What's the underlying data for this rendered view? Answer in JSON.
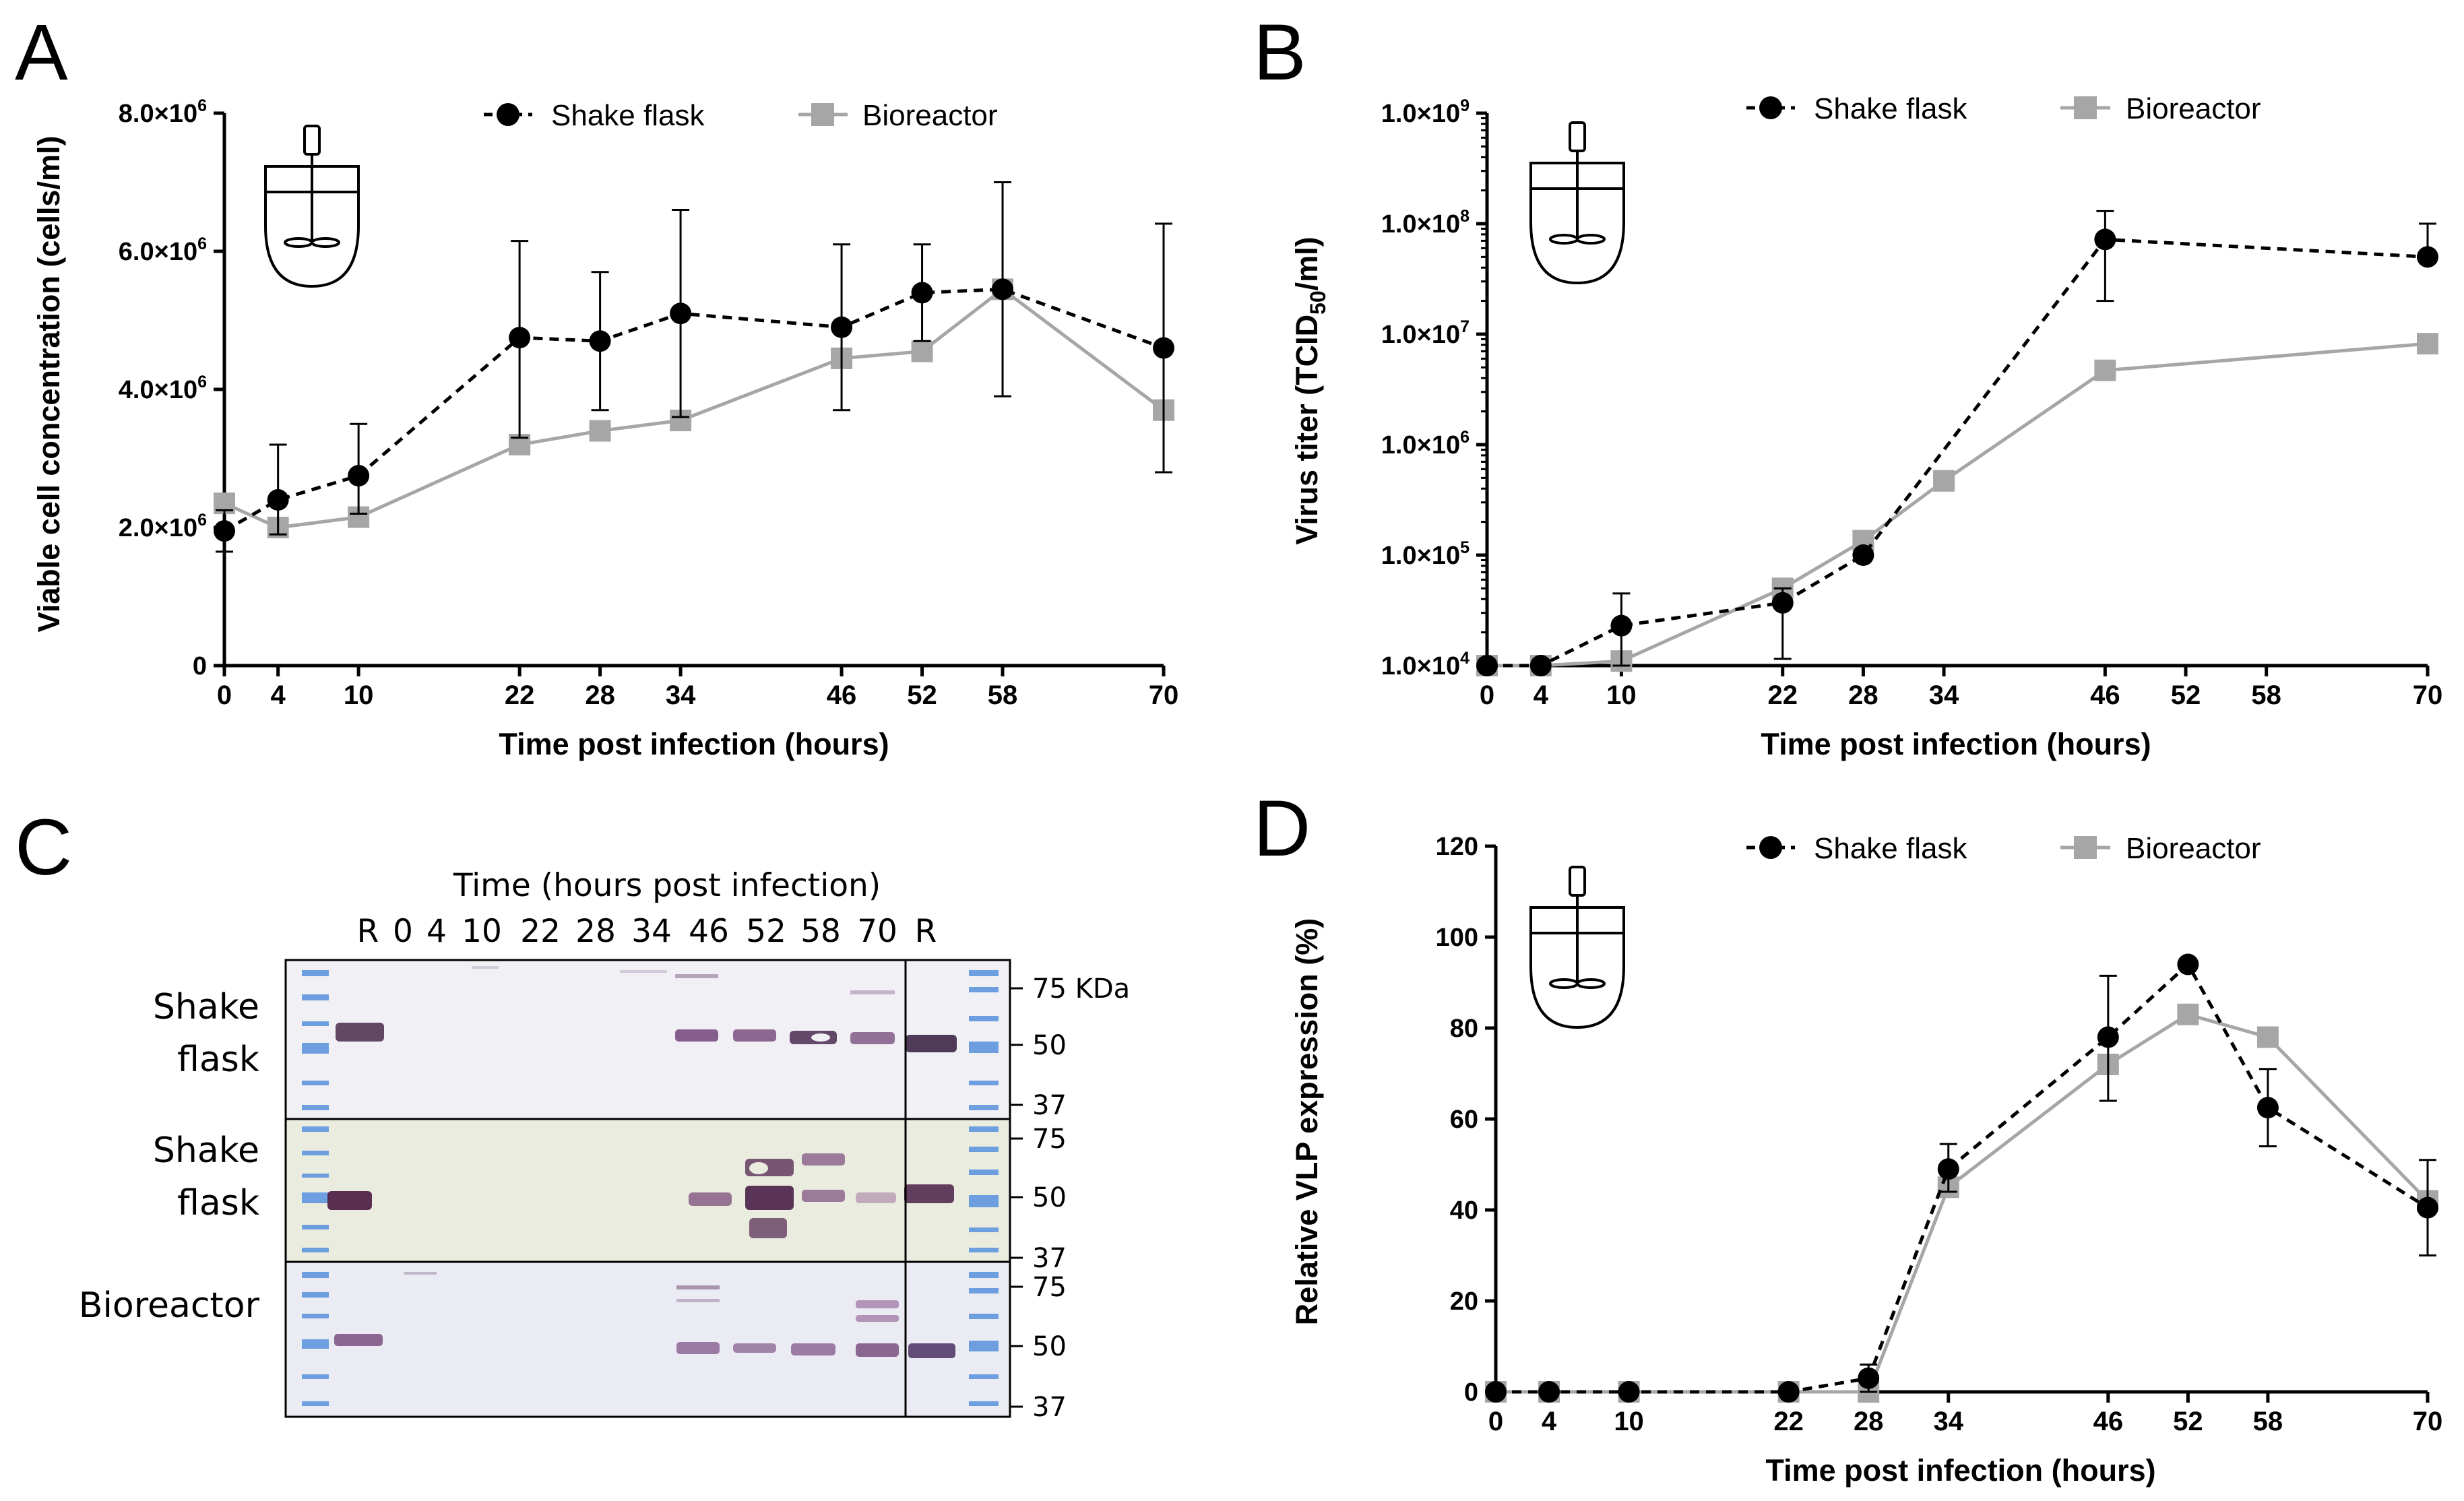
{
  "colors": {
    "shake": "#000000",
    "bio": "#a6a6a6",
    "axis": "#000000"
  },
  "legend": {
    "shake": "Shake flask",
    "bio": "Bioreactor"
  },
  "chart_data": [
    {
      "panel": "A",
      "type": "line",
      "ylabel": "Viable cell concentration (cells/ml)",
      "xlabel": "Time post infection (hours)",
      "xticks": [
        0,
        4,
        10,
        22,
        28,
        34,
        46,
        52,
        58,
        70
      ],
      "xlim": [
        0,
        70
      ],
      "ylim": [
        0,
        8000000
      ],
      "yscale": "linear",
      "yticks": [
        0,
        2000000,
        4000000,
        6000000,
        8000000
      ],
      "ytick_labels": [
        {
          "base": "0"
        },
        {
          "base": "2.0×10",
          "exp": "6"
        },
        {
          "base": "4.0×10",
          "exp": "6"
        },
        {
          "base": "6.0×10",
          "exp": "6"
        },
        {
          "base": "8.0×10",
          "exp": "6"
        }
      ],
      "series": [
        {
          "name": "Shake flask",
          "key": "shake",
          "x": [
            0,
            4,
            10,
            22,
            28,
            34,
            46,
            52,
            58,
            70
          ],
          "y": [
            1950000,
            2400000,
            2750000,
            4750000,
            4700000,
            5100000,
            4900000,
            5400000,
            5450000,
            4600000
          ],
          "err_lo": [
            1650000,
            1900000,
            2200000,
            3300000,
            3700000,
            3600000,
            3700000,
            4700000,
            3900000,
            2800000
          ],
          "err_hi": [
            2250000,
            3200000,
            3500000,
            6150000,
            5700000,
            6600000,
            6100000,
            6100000,
            7000000,
            6400000
          ]
        },
        {
          "name": "Bioreactor",
          "key": "bio",
          "x": [
            0,
            4,
            10,
            22,
            28,
            34,
            46,
            52,
            58,
            70
          ],
          "y": [
            2350000,
            2000000,
            2150000,
            3200000,
            3400000,
            3550000,
            4450000,
            4550000,
            5450000,
            3700000
          ]
        }
      ]
    },
    {
      "panel": "B",
      "type": "line",
      "ylabel": "Virus titer (TCID50/ml)",
      "xlabel": "Time post infection (hours)",
      "xticks": [
        0,
        4,
        10,
        22,
        28,
        34,
        46,
        52,
        58,
        70
      ],
      "xlim": [
        0,
        70
      ],
      "ylim": [
        10000,
        1000000000
      ],
      "yscale": "log",
      "yticks": [
        10000,
        100000,
        1000000,
        10000000,
        100000000,
        1000000000
      ],
      "ytick_labels": [
        {
          "base": "1.0×10",
          "exp": "4"
        },
        {
          "base": "1.0×10",
          "exp": "5"
        },
        {
          "base": "1.0×10",
          "exp": "6"
        },
        {
          "base": "1.0×10",
          "exp": "7"
        },
        {
          "base": "1.0×10",
          "exp": "8"
        },
        {
          "base": "1.0×10",
          "exp": "9"
        }
      ],
      "series": [
        {
          "name": "Shake flask",
          "key": "shake",
          "x": [
            0,
            4,
            10,
            22,
            28,
            46,
            70
          ],
          "y": [
            10000,
            10000,
            23000,
            37000,
            100000,
            72000000,
            50000000
          ],
          "err_lo": [
            10000,
            10000,
            10000,
            11500,
            100000,
            20000000,
            50000000
          ],
          "err_hi": [
            10000,
            10000,
            45000,
            50000,
            100000,
            130000000,
            100000000
          ]
        },
        {
          "name": "Bioreactor",
          "key": "bio",
          "x": [
            0,
            4,
            10,
            22,
            28,
            34,
            46,
            70
          ],
          "y": [
            10000,
            10000,
            11000,
            50000,
            135000,
            470000,
            4700000,
            8200000
          ]
        }
      ]
    },
    {
      "panel": "D",
      "type": "line",
      "ylabel": "Relative VLP expression (%)",
      "xlabel": "Time post infection (hours)",
      "xticks": [
        0,
        4,
        10,
        22,
        28,
        34,
        46,
        52,
        58,
        70
      ],
      "xlim": [
        0,
        70
      ],
      "ylim": [
        0,
        120
      ],
      "yscale": "linear",
      "yticks": [
        0,
        20,
        40,
        60,
        80,
        100,
        120
      ],
      "ytick_labels": [
        {
          "base": "0"
        },
        {
          "base": "20"
        },
        {
          "base": "40"
        },
        {
          "base": "60"
        },
        {
          "base": "80"
        },
        {
          "base": "100"
        },
        {
          "base": "120"
        }
      ],
      "series": [
        {
          "name": "Shake flask",
          "key": "shake",
          "x": [
            0,
            4,
            10,
            22,
            28,
            34,
            46,
            52,
            58,
            70
          ],
          "y": [
            0,
            0,
            0,
            0,
            3,
            49,
            78,
            94,
            62.5,
            40.5
          ],
          "err_lo": [
            0,
            0,
            0,
            0,
            0,
            44,
            64,
            94,
            54,
            30
          ],
          "err_hi": [
            0,
            0,
            0,
            0,
            6,
            54.5,
            91.5,
            94,
            71,
            51
          ]
        },
        {
          "name": "Bioreactor",
          "key": "bio",
          "x": [
            0,
            4,
            10,
            22,
            28,
            34,
            46,
            52,
            58,
            70
          ],
          "y": [
            0,
            0,
            0,
            0,
            0,
            45,
            72,
            83,
            78,
            42
          ]
        }
      ]
    }
  ],
  "panels": {
    "A": "A",
    "B": "B",
    "C": "C",
    "D": "D"
  },
  "blot": {
    "title": "Time (hours post infection)",
    "lanes": [
      "R",
      "0",
      "4",
      "10",
      "22",
      "28",
      "34",
      "46",
      "52",
      "58",
      "70",
      "R"
    ],
    "rows": [
      {
        "label_line1": "Shake",
        "label_line2": "flask",
        "markers": [
          "75 KDa",
          "50",
          "37"
        ]
      },
      {
        "label_line1": "Shake",
        "label_line2": "flask",
        "markers": [
          "75",
          "50",
          "37"
        ]
      },
      {
        "label_line1": "Bioreactor",
        "label_line2": "",
        "markers": [
          "75",
          "50",
          "37"
        ]
      }
    ]
  }
}
